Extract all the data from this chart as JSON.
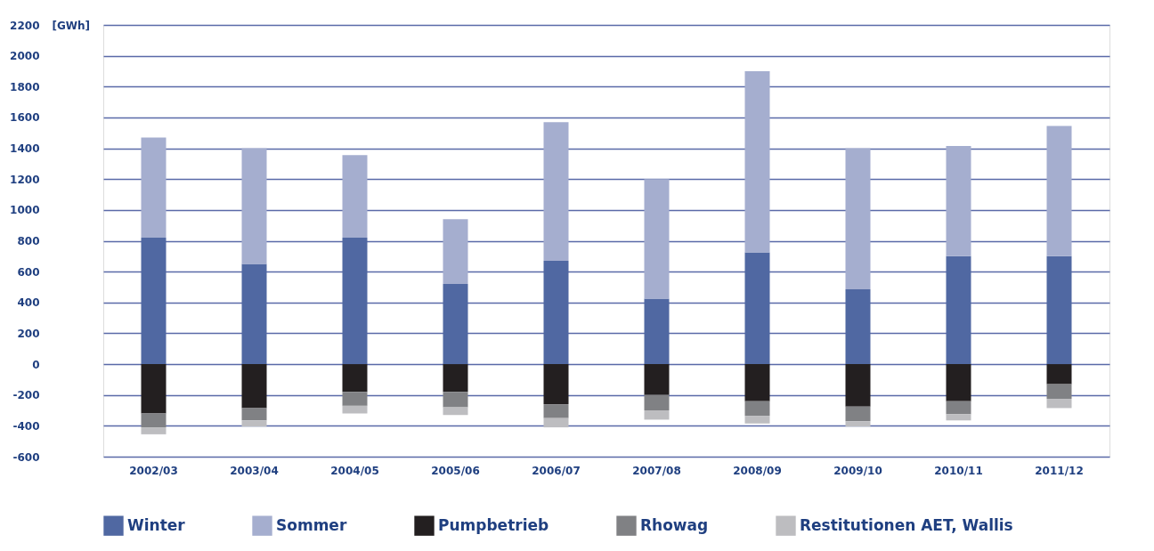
{
  "chart_data": {
    "type": "bar",
    "stacked": true,
    "ylabel": "[GWh]",
    "categories": [
      "2002/03",
      "2003/04",
      "2004/05",
      "2005/06",
      "2006/07",
      "2007/08",
      "2008/09",
      "2009/10",
      "2010/11",
      "2011/12"
    ],
    "series": [
      {
        "name": "Winter",
        "color": "#5068a2",
        "values": [
          820,
          650,
          820,
          520,
          670,
          425,
          725,
          485,
          700,
          700
        ]
      },
      {
        "name": "Sommer",
        "color": "#a5aecf",
        "values": [
          650,
          750,
          535,
          420,
          900,
          775,
          1175,
          915,
          715,
          845
        ]
      },
      {
        "name": "Pumpbetrieb",
        "color": "#231f20",
        "values": [
          -320,
          -285,
          -180,
          -180,
          -260,
          -200,
          -240,
          -275,
          -240,
          -130
        ]
      },
      {
        "name": "Rhowag",
        "color": "#808184",
        "values": [
          -90,
          -80,
          -90,
          -100,
          -90,
          -100,
          -95,
          -95,
          -85,
          -95
        ]
      },
      {
        "name": "Restitutionen AET, Wallis",
        "color": "#bdbdc0",
        "values": [
          -45,
          -40,
          -50,
          -50,
          -60,
          -60,
          -50,
          -35,
          -40,
          -60
        ]
      }
    ],
    "ylim": [
      -600,
      2200
    ],
    "yticks": [
      -600,
      -400,
      -200,
      0,
      200,
      400,
      600,
      800,
      1000,
      1200,
      1400,
      1600,
      1800,
      2000,
      2200
    ],
    "grid": "y",
    "legend": "bottom"
  }
}
